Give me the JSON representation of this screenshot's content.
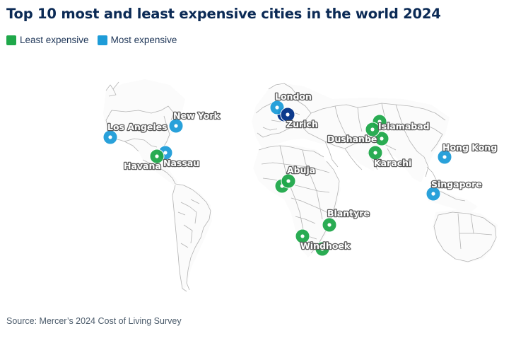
{
  "title": "Top 10 most and least expensive cities in the world 2024",
  "legend": {
    "least": {
      "label": "Least expensive",
      "color": "#1fa84a"
    },
    "most": {
      "label": "Most expensive",
      "color": "#1e9cd8"
    }
  },
  "source": "Source: Mercer’s 2024 Cost of Living Survey",
  "colors": {
    "most_highlight": "#0c3a8c",
    "least_dark": "#147a35"
  },
  "cities": [
    {
      "name": "London",
      "category": "most"
    },
    {
      "name": "Zurich",
      "category": "most"
    },
    {
      "name": "New York",
      "category": "most"
    },
    {
      "name": "Los Angeles",
      "category": "most"
    },
    {
      "name": "Nassau",
      "category": "most"
    },
    {
      "name": "Hong Kong",
      "category": "most"
    },
    {
      "name": "Singapore",
      "category": "most"
    },
    {
      "name": "Havana",
      "category": "least"
    },
    {
      "name": "Abuja",
      "category": "least"
    },
    {
      "name": "Islamabad",
      "category": "least"
    },
    {
      "name": "Dushanbe",
      "category": "least"
    },
    {
      "name": "Karachi",
      "category": "least"
    },
    {
      "name": "Blantyre",
      "category": "least"
    },
    {
      "name": "Windhoek",
      "category": "least"
    }
  ]
}
